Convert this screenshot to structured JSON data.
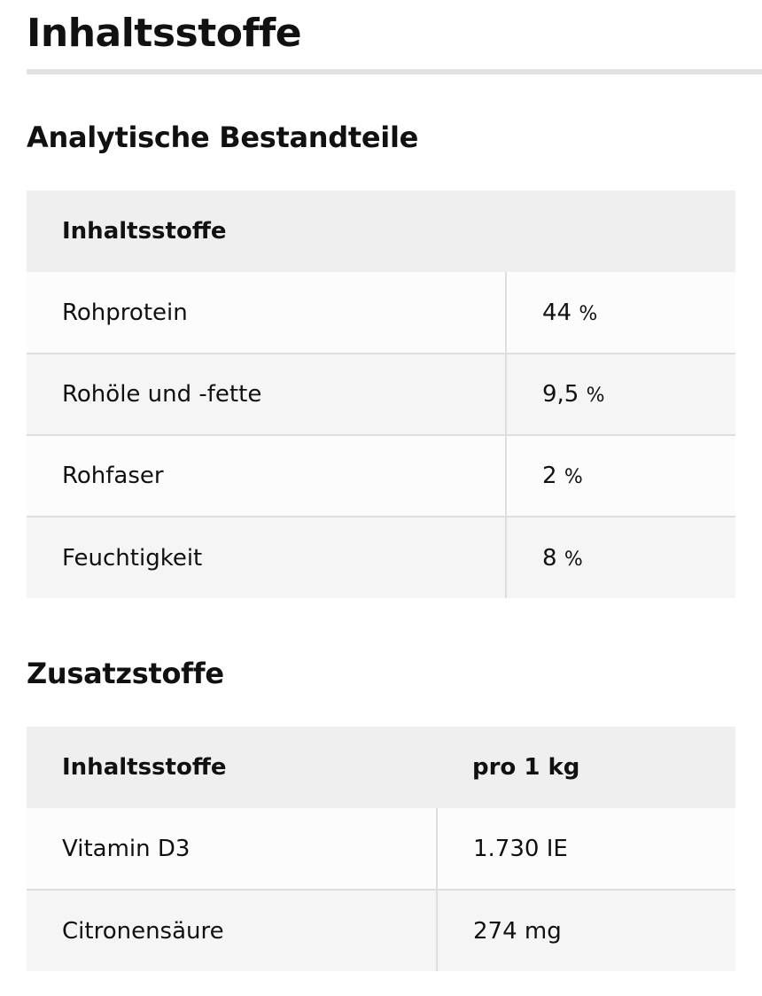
{
  "page": {
    "title": "Inhaltsstoffe"
  },
  "analytical": {
    "heading": "Analytische Bestandteile",
    "column_header": "Inhaltsstoffe",
    "rows": [
      {
        "name": "Rohprotein",
        "value": "44",
        "unit": "%"
      },
      {
        "name": "Rohöle und -fette",
        "value": "9,5",
        "unit": "%"
      },
      {
        "name": "Rohfaser",
        "value": "2",
        "unit": "%"
      },
      {
        "name": "Feuchtigkeit",
        "value": "8",
        "unit": "%"
      }
    ]
  },
  "additives": {
    "heading": "Zusatzstoffe",
    "column_headers": [
      "Inhaltsstoffe",
      "pro 1 kg"
    ],
    "rows": [
      {
        "name": "Vitamin D3",
        "value": "1.730 IE"
      },
      {
        "name": "Citronensäure",
        "value": "274 mg"
      }
    ]
  }
}
